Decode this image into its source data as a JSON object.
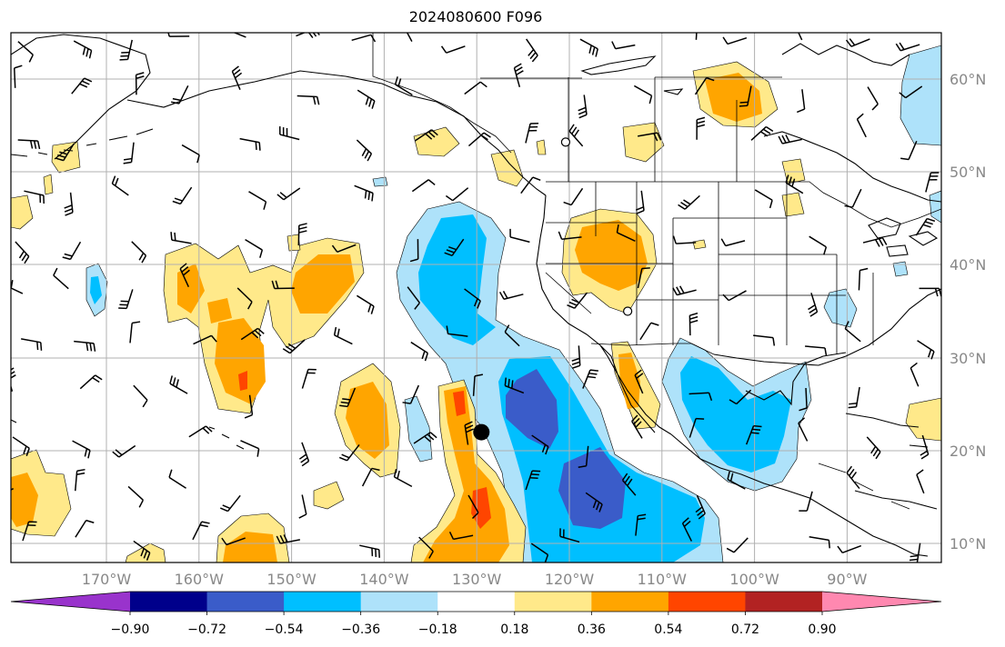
{
  "title": "2024080600 F096",
  "map": {
    "lon_range": [
      -180,
      -80
    ],
    "lat_range": [
      8,
      65
    ],
    "lon_ticks": [
      "170°W",
      "160°W",
      "150°W",
      "140°W",
      "130°W",
      "120°W",
      "110°W",
      "100°W",
      "90°W"
    ],
    "lon_tick_values": [
      -170,
      -160,
      -150,
      -140,
      -130,
      -120,
      -110,
      -100,
      -90
    ],
    "lat_ticks": [
      "10°N",
      "20°N",
      "30°N",
      "40°N",
      "50°N",
      "60°N"
    ],
    "lat_tick_values": [
      10,
      20,
      30,
      40,
      50,
      60
    ],
    "grid": true,
    "markers": [
      {
        "name": "storm-center-marker",
        "lon": -129.5,
        "lat": 22,
        "style": "filled"
      },
      {
        "name": "station-marker-a",
        "lon": -120.4,
        "lat": 53.2,
        "style": "open"
      },
      {
        "name": "station-marker-b",
        "lon": -113.7,
        "lat": 35,
        "style": "open"
      }
    ],
    "field_name": "",
    "wind_barbs_shown": true
  },
  "colorbar": {
    "levels": [
      "−0.90",
      "−0.72",
      "−0.54",
      "−0.36",
      "−0.18",
      "0.18",
      "0.36",
      "0.54",
      "0.72",
      "0.90"
    ],
    "level_values": [
      -0.9,
      -0.72,
      -0.54,
      -0.36,
      -0.18,
      0.18,
      0.36,
      0.54,
      0.72,
      0.9
    ],
    "colors": [
      "#9933cc",
      "#00008b",
      "#3a5cc9",
      "#00bfff",
      "#aee2fa",
      "#ffffff",
      "#ffe98a",
      "#ffa500",
      "#ff4500",
      "#b22222",
      "#ff88b0"
    ],
    "extend": "both"
  },
  "colors": {
    "land_outline": "#000000",
    "grid": "#b0b0b0",
    "tick_label": "#888888"
  }
}
